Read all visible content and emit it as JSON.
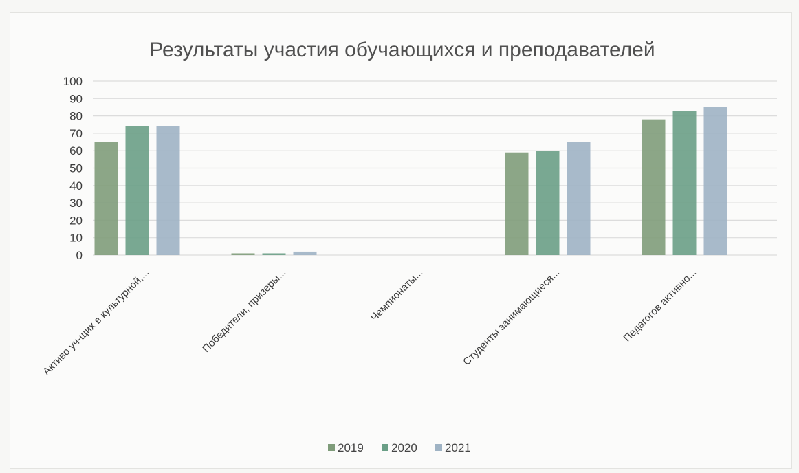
{
  "chart_data": {
    "type": "bar",
    "title": "Результаты участия обучающихся и преподавателей",
    "xlabel": "",
    "ylabel": "",
    "ylim": [
      0,
      100
    ],
    "yticks": [
      0,
      10,
      20,
      30,
      40,
      50,
      60,
      70,
      80,
      90,
      100
    ],
    "grid": true,
    "legend_position": "bottom",
    "categories": [
      "Активо уч-щих в культурной,...",
      "Победители, призеры...",
      "Чемпионаты...",
      "Студенты занимающиеся...",
      "Педагогов активно..."
    ],
    "series": [
      {
        "name": "2019",
        "color": "#7f9c7a",
        "values": [
          65,
          1,
          0,
          59,
          78
        ]
      },
      {
        "name": "2020",
        "color": "#6a9f86",
        "values": [
          74,
          1,
          0,
          60,
          83
        ]
      },
      {
        "name": "2021",
        "color": "#9fb3c4",
        "values": [
          74,
          2,
          0,
          65,
          85
        ]
      }
    ]
  }
}
